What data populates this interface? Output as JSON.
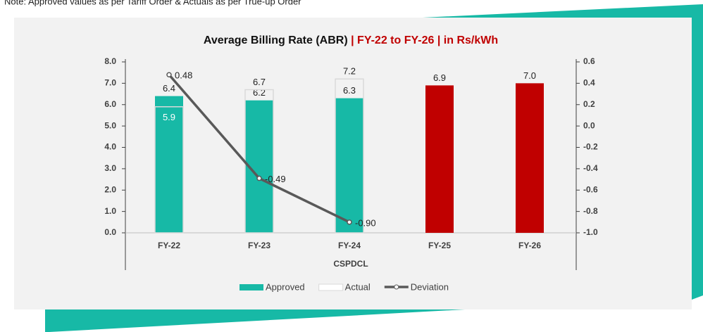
{
  "note": "Note: Approved values as per Tariff Order & Actuals as per True-up Order",
  "chart_data": {
    "type": "bar",
    "title": "Average Billing Rate (ABR)",
    "title_suffix": " | FY-22 to FY-26 | in Rs/kWh",
    "xlabel": "CSPDCL",
    "categories": [
      "FY-22",
      "FY-23",
      "FY-24",
      "FY-25",
      "FY-26"
    ],
    "series": [
      {
        "name": "Approved",
        "kind": "bar",
        "color": "#17b9a6",
        "colors": [
          "#17b9a6",
          "#17b9a6",
          "#17b9a6",
          "#c00000",
          "#c00000"
        ],
        "values": [
          6.4,
          6.2,
          6.3,
          6.9,
          7.0
        ],
        "value_labels": [
          "6.4",
          "6.2",
          "6.3",
          "6.9",
          "7.0"
        ]
      },
      {
        "name": "Actual",
        "kind": "outline",
        "color": "#d9d9d9",
        "values": [
          5.9,
          6.7,
          7.2,
          null,
          null
        ],
        "value_labels": [
          "5.9",
          "6.7",
          "7.2",
          null,
          null
        ]
      },
      {
        "name": "Deviation",
        "kind": "line",
        "axis": "y2",
        "color": "#595959",
        "values": [
          0.48,
          -0.49,
          -0.9,
          null,
          null
        ],
        "value_labels": [
          "0.48",
          "-0.49",
          "-0.90",
          null,
          null
        ]
      }
    ],
    "ylim": [
      0,
      8
    ],
    "yticks": [
      {
        "value": 0,
        "label": "0.0"
      },
      {
        "value": 1,
        "label": "1.0"
      },
      {
        "value": 2,
        "label": "2.0"
      },
      {
        "value": 3,
        "label": "3.0"
      },
      {
        "value": 4,
        "label": "4.0"
      },
      {
        "value": 5,
        "label": "5.0"
      },
      {
        "value": 6,
        "label": "6.0"
      },
      {
        "value": 7,
        "label": "7.0"
      },
      {
        "value": 8,
        "label": "8.0"
      }
    ],
    "y2lim": [
      -1,
      0.6
    ],
    "y2ticks": [
      {
        "value": -1,
        "label": "-1.0"
      },
      -0.8,
      -0.6,
      -0.4,
      -0.2,
      {
        "value": 0,
        "label": "0.0"
      },
      0.2,
      0.4,
      0.6
    ],
    "legend": "bottom"
  }
}
